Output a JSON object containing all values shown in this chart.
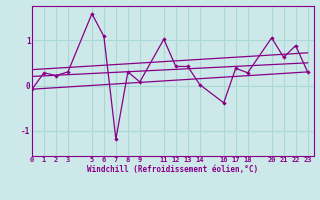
{
  "background_color": "#cce8e8",
  "grid_color": "#aad8d8",
  "line_color": "#880088",
  "xtick_vals": [
    0,
    1,
    2,
    3,
    5,
    6,
    7,
    8,
    9,
    11,
    12,
    13,
    14,
    16,
    17,
    18,
    20,
    21,
    22,
    23
  ],
  "xtick_labels": [
    "0",
    "1",
    "2",
    "3",
    "5",
    "6",
    "7",
    "8",
    "9",
    "11",
    "12",
    "13",
    "14",
    "16",
    "17",
    "18",
    "20",
    "21",
    "22",
    "23"
  ],
  "ytick_vals": [
    -1,
    0,
    1
  ],
  "xlim": [
    0,
    23.5
  ],
  "ylim": [
    -1.55,
    1.75
  ],
  "main_x": [
    0,
    1,
    2,
    3,
    5,
    6,
    7,
    8,
    9,
    11,
    12,
    13,
    14,
    16,
    17,
    18,
    20,
    21,
    22,
    23
  ],
  "main_y": [
    -0.08,
    0.28,
    0.22,
    0.3,
    1.58,
    1.08,
    -1.18,
    0.3,
    0.08,
    1.02,
    0.42,
    0.42,
    0.02,
    -0.38,
    0.38,
    0.28,
    1.05,
    0.62,
    0.88,
    0.3
  ],
  "trend1_x": [
    0,
    23
  ],
  "trend1_y": [
    -0.08,
    0.3
  ],
  "trend2_x": [
    0,
    23
  ],
  "trend2_y": [
    0.2,
    0.5
  ],
  "trend3_x": [
    0,
    23
  ],
  "trend3_y": [
    0.35,
    0.72
  ],
  "xlabel": "Windchill (Refroidissement éolien,°C)"
}
